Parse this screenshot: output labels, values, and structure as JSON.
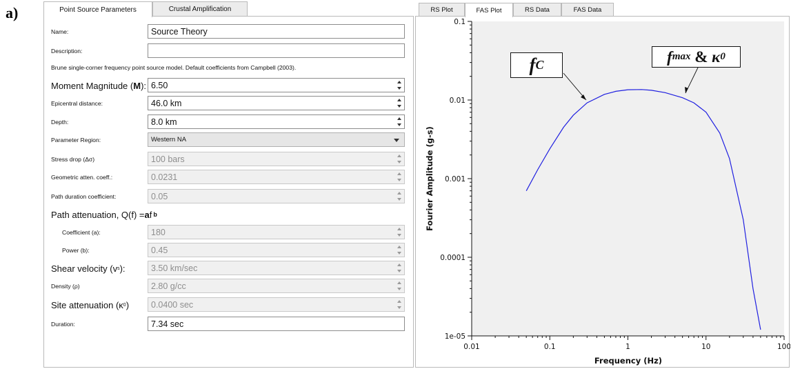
{
  "figure_label": "a)",
  "left_tabs": [
    "Point Source Parameters",
    "Crustal Amplification"
  ],
  "right_tabs": [
    "RS Plot",
    "FAS Plot",
    "RS Data",
    "FAS Data"
  ],
  "form": {
    "name": {
      "label": "Name:",
      "value": "Source Theory"
    },
    "description": {
      "label": "Description:",
      "value": ""
    },
    "note": "Brune single-corner frequency point source model. Default coefficients from Campbell (2003).",
    "magnitude": {
      "label_pre": "Moment Magnitude (",
      "label_bold": "M",
      "label_post": "):",
      "value": "6.50"
    },
    "epicentral": {
      "label": "Epicentral distance:",
      "value": "46.0 km"
    },
    "depth": {
      "label": "Depth:",
      "value": "8.0 km"
    },
    "region": {
      "label": "Parameter Region:",
      "value": "Western NA"
    },
    "stress": {
      "label": "Stress drop (Δσ)",
      "value": "100 bars"
    },
    "geometric": {
      "label": "Geometric atten. coeff.:",
      "value": "0.0231"
    },
    "path_duration": {
      "label": "Path duration coefficient:",
      "value": "0.05"
    },
    "path_atten": {
      "label_pre": "Path attenuation, Q(f) = ",
      "label_a": "a",
      "label_f": " f ",
      "label_b": "b"
    },
    "coefficient": {
      "label": "Coefficient (a):",
      "value": "180"
    },
    "power": {
      "label": "Power (b):",
      "value": "0.45"
    },
    "shear": {
      "label_pre": "Shear velocity (v",
      "label_sub": "s",
      "label_post": "):",
      "value": "3.50 km/sec"
    },
    "density": {
      "label": "Density (ρ)",
      "value": "2.80 g/cc"
    },
    "site": {
      "label_pre": "Site attenuation (κ",
      "label_sub": "0",
      "label_post": ")",
      "value": "0.0400 sec"
    },
    "duration": {
      "label": "Duration:",
      "value": "7.34 sec"
    }
  },
  "chart_data": {
    "type": "line",
    "xlabel": "Frequency (Hz)",
    "ylabel": "Fourier Amplitude (g-s)",
    "xscale": "log",
    "yscale": "log",
    "xlim": [
      0.01,
      100
    ],
    "ylim": [
      1e-05,
      0.1
    ],
    "xticks": [
      "0.01",
      "0.1",
      "1",
      "10",
      "100"
    ],
    "yticks": [
      "0.1",
      "0.01",
      "0.001",
      "0.0001",
      "1e-05"
    ],
    "line_color": "#1f1fe0",
    "series": [
      {
        "x": [
          0.05,
          0.07,
          0.1,
          0.15,
          0.2,
          0.3,
          0.5,
          0.7,
          1,
          1.5,
          2,
          3,
          5,
          7,
          10,
          15,
          20,
          30,
          40,
          50
        ],
        "y": [
          0.0007,
          0.0013,
          0.0024,
          0.0045,
          0.0064,
          0.0092,
          0.0118,
          0.0129,
          0.0135,
          0.0136,
          0.0133,
          0.0124,
          0.0107,
          0.0092,
          0.007,
          0.0038,
          0.0018,
          0.0003,
          4e-05,
          1.2e-05
        ]
      }
    ],
    "annotations": [
      {
        "main": "f",
        "sub": "C"
      },
      {
        "main": "f",
        "sub": "max",
        "mid": " & ",
        "main2": "κ",
        "sub2": "0"
      }
    ]
  }
}
